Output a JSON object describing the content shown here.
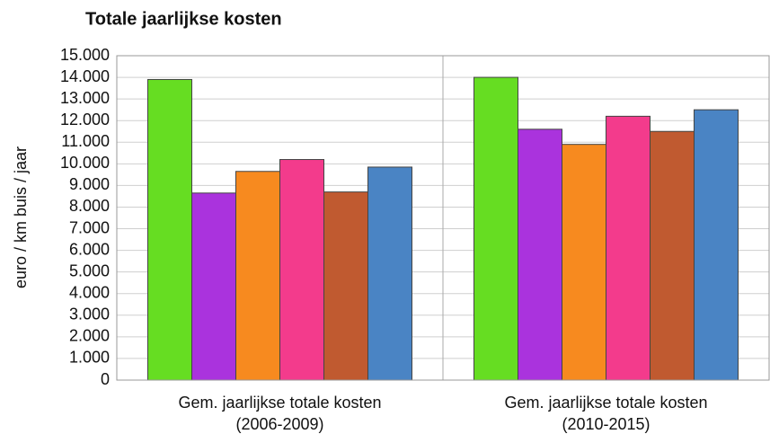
{
  "chart_data": {
    "type": "bar",
    "title": "Totale jaarlijkse kosten",
    "ylabel": "euro / km buis / jaar",
    "categories": [
      [
        "Gem. jaarlijkse totale kosten",
        "(2006-2009)"
      ],
      [
        "Gem. jaarlijkse totale kosten",
        "(2010-2015)"
      ]
    ],
    "series": [
      {
        "color": "#66dd22",
        "values": [
          13900,
          14000
        ]
      },
      {
        "color": "#aa33dd",
        "values": [
          8650,
          11600
        ]
      },
      {
        "color": "#f78a1f",
        "values": [
          9650,
          10900
        ]
      },
      {
        "color": "#f33b8c",
        "values": [
          10200,
          12200
        ]
      },
      {
        "color": "#c05a30",
        "values": [
          8700,
          11500
        ]
      },
      {
        "color": "#4a84c4",
        "values": [
          9850,
          12500
        ]
      }
    ],
    "ylim": [
      0,
      15000
    ],
    "yticks": [
      0,
      {
        "value": 1000,
        "label": "1.000"
      },
      {
        "value": 2000,
        "label": "2.000"
      },
      {
        "value": 3000,
        "label": "3.000"
      },
      {
        "value": 4000,
        "label": "4.000"
      },
      {
        "value": 5000,
        "label": "5.000"
      },
      {
        "value": 6000,
        "label": "6.000"
      },
      {
        "value": 7000,
        "label": "7.000"
      },
      {
        "value": 8000,
        "label": "8.000"
      },
      {
        "value": 9000,
        "label": "9.000"
      },
      {
        "value": 10000,
        "label": "10.000"
      },
      {
        "value": 11000,
        "label": "11.000"
      },
      {
        "value": 12000,
        "label": "12.000"
      },
      {
        "value": 13000,
        "label": "13.000"
      },
      {
        "value": 14000,
        "label": "14.000"
      },
      {
        "value": 15000,
        "label": "15.000"
      }
    ],
    "grid": true
  }
}
